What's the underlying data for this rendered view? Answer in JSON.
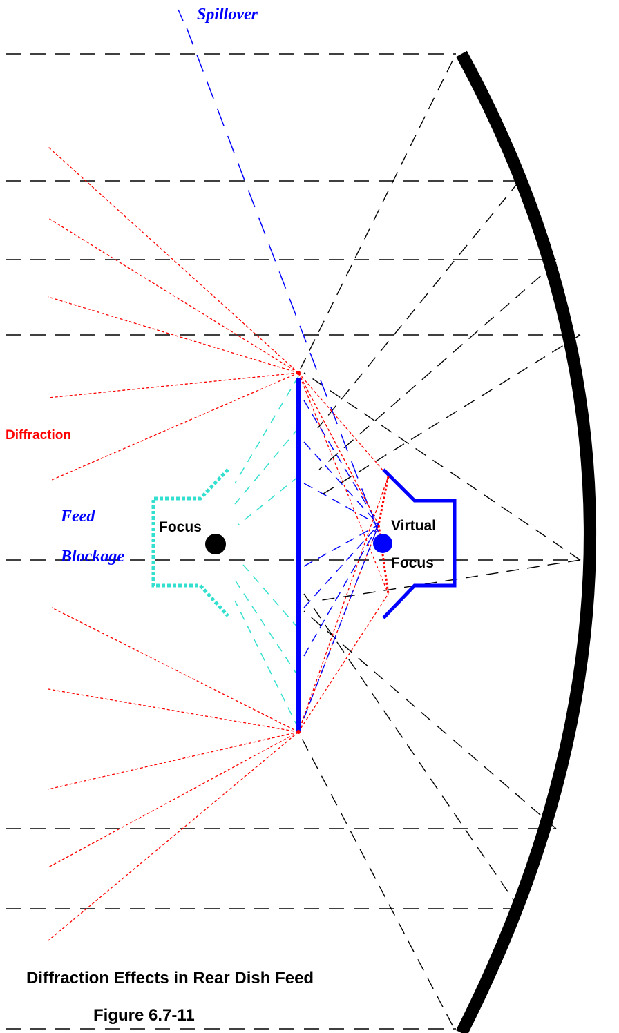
{
  "labels": {
    "spillover": "Spillover",
    "diffraction": "Diffraction",
    "feed": "Feed",
    "blockage": "Blockage",
    "focus": "Focus",
    "virtual": "Virtual",
    "virtual_focus": "Focus",
    "caption": "Diffraction Effects in Rear Dish Feed",
    "figure": "Figure 6.7-11"
  },
  "colors": {
    "dish": "#000000",
    "rays": "#000000",
    "diffraction": "#ff0000",
    "blue": "#0000ff",
    "feed_outline": "#33e0d0"
  }
}
